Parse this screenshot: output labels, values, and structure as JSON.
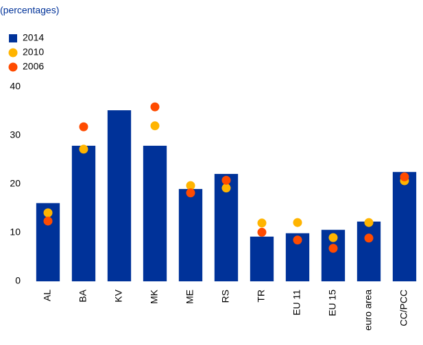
{
  "chart_data": {
    "type": "bar",
    "subtitle": "(percentages)",
    "categories": [
      "AL",
      "BA",
      "KV",
      "MK",
      "ME",
      "RS",
      "TR",
      "EU 11",
      "EU 15",
      "euro area",
      "CC/PCC"
    ],
    "series": [
      {
        "name": "2014",
        "color": "#003299",
        "style": "bar",
        "values": [
          16.1,
          27.9,
          35.2,
          27.9,
          19.0,
          22.1,
          9.2,
          9.9,
          10.6,
          12.3,
          22.5
        ]
      },
      {
        "name": "2010",
        "color": "#ffb400",
        "style": "dot",
        "values": [
          14.1,
          27.2,
          null,
          32.0,
          19.7,
          19.2,
          12.0,
          12.1,
          9.0,
          12.1,
          20.7
        ]
      },
      {
        "name": "2006",
        "color": "#ff4b00",
        "style": "dot",
        "values": [
          12.4,
          31.8,
          null,
          35.9,
          18.2,
          20.8,
          10.1,
          8.5,
          6.8,
          8.9,
          21.5
        ]
      }
    ],
    "ylim": [
      0,
      40
    ],
    "yticks": [
      0,
      10,
      20,
      30,
      40
    ],
    "grid": false,
    "legend": "top-left"
  }
}
